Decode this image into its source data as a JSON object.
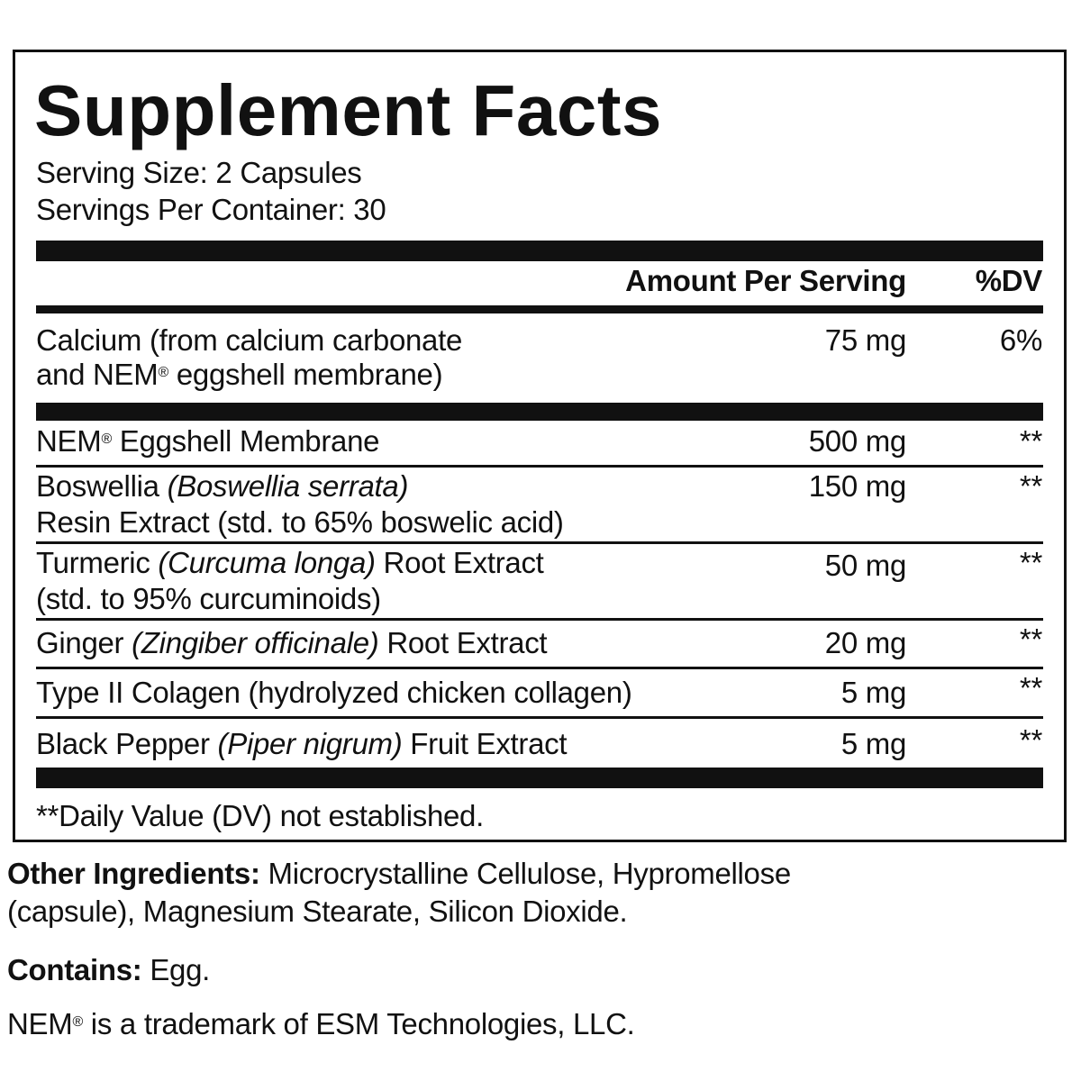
{
  "title": "Supplement Facts",
  "serving_size": "Serving Size: 2 Capsules",
  "servings_per_container": "Servings Per Container: 30",
  "header": {
    "amount": "Amount Per Serving",
    "dv": "%DV"
  },
  "calcium": {
    "line1": "Calcium (from calcium carbonate",
    "line2_a": "and NEM",
    "line2_reg": "®",
    "line2_b": " eggshell membrane)",
    "amount": "75 mg",
    "dv": "6%"
  },
  "rows": [
    {
      "a": "NEM",
      "reg": "®",
      "b": " Eggshell Membrane",
      "amount": "500 mg",
      "dv": "**"
    },
    {
      "a": "Boswellia ",
      "i": "(Boswellia serrata)",
      "line2": "Resin Extract (std. to 65% boswelic acid)",
      "amount": "150 mg",
      "dv": "**"
    },
    {
      "a": "Turmeric ",
      "i": "(Curcuma longa)",
      "b": " Root Extract",
      "line2": "(std. to 95% curcuminoids)",
      "amount": "50 mg",
      "dv": "**"
    },
    {
      "a": "Ginger ",
      "i": "(Zingiber officinale)",
      "b": " Root Extract",
      "amount": "20 mg",
      "dv": "**"
    },
    {
      "a": "Type II Colagen (hydrolyzed chicken collagen)",
      "amount": "5 mg",
      "dv": "**"
    },
    {
      "a": "Black Pepper ",
      "i": "(Piper nigrum)",
      "b": " Fruit Extract",
      "amount": "5 mg",
      "dv": "**"
    }
  ],
  "footnote": "**Daily Value (DV) not established.",
  "other_ingredients": {
    "label": "Other Ingredients:",
    "line1": " Microcrystalline Cellulose, Hypromellose",
    "line2": "(capsule), Magnesium Stearate, Silicon Dioxide."
  },
  "contains": {
    "label": "Contains:",
    "value": " Egg."
  },
  "trademark": {
    "a": "NEM",
    "reg": "®",
    "b": " is a trademark of ESM Technologies, LLC."
  }
}
